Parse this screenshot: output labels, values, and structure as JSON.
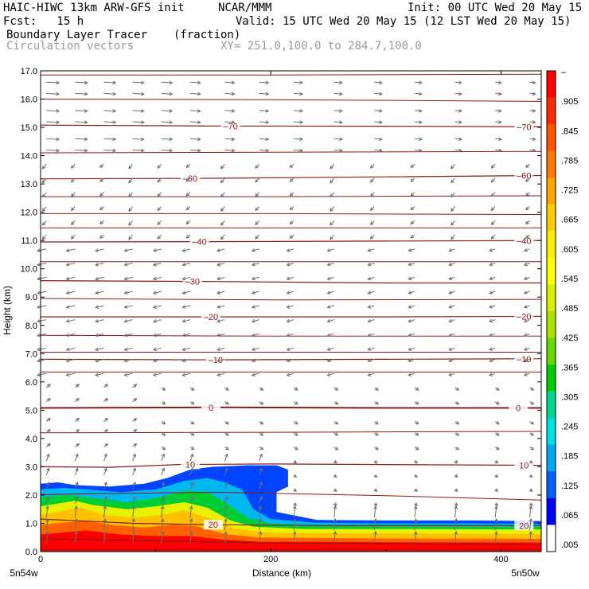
{
  "header": {
    "title": "HAIC-HIWC 13km ARW-GFS init",
    "org": "NCAR/MMM",
    "init": "Init: 00 UTC Wed 20 May 15",
    "fcst": "Fcst:   15 h",
    "valid": "Valid: 15 UTC Wed 20 May 15 (12 LST Wed 20 May 15)",
    "field": "Boundary Layer Tracer",
    "units": "(fraction)",
    "overlay": "Circulation vectors",
    "xy": "XY= 251.0,100.0 to 284.7,100.0"
  },
  "chart_data": {
    "type": "heatmap",
    "title": "Boundary Layer Tracer",
    "ylabel": "Height (km)",
    "xlabel": "Distance (km)",
    "xlim": [
      0,
      435
    ],
    "ylim": [
      0,
      17
    ],
    "y_ticks": [
      "0.0",
      "1.0",
      "2.0",
      "3.0",
      "4.0",
      "5.0",
      "6.0",
      "7.0",
      "8.0",
      "9.0",
      "10.0",
      "11.0",
      "12.0",
      "13.0",
      "14.0",
      "15.0",
      "16.0",
      "17.0"
    ],
    "x_ticks": [
      0,
      200,
      400
    ],
    "x_tick_labels": [
      "0",
      "200",
      "400"
    ],
    "x_end_labels": [
      "5n54w",
      "5n50w"
    ],
    "colorbar": {
      "labels": [
        "–",
        ".905",
        ".845",
        ".785",
        ".725",
        ".665",
        ".605",
        ".545",
        ".485",
        ".425",
        ".365",
        ".305",
        ".245",
        ".185",
        ".125",
        ".065",
        ".005"
      ],
      "colors": [
        "#ff0000",
        "#ff2a00",
        "#ff5500",
        "#ff7a00",
        "#ffa500",
        "#ffcc00",
        "#ffee00",
        "#ffff00",
        "#d8f000",
        "#a8e400",
        "#66d800",
        "#00cc00",
        "#00d890",
        "#00e0e0",
        "#00a8f0",
        "#0060ff",
        "#0000ff",
        "#ffffff"
      ]
    },
    "tracer_bands": [
      {
        "value": 0.035,
        "color": "#0044ff",
        "top": [
          [
            0,
            2.4
          ],
          [
            15,
            2.45
          ],
          [
            30,
            2.35
          ],
          [
            60,
            2.3
          ],
          [
            90,
            2.4
          ],
          [
            110,
            2.6
          ],
          [
            130,
            2.9
          ],
          [
            150,
            3.0
          ],
          [
            180,
            3.05
          ],
          [
            205,
            3.05
          ],
          [
            215,
            2.9
          ],
          [
            215,
            2.3
          ],
          [
            205,
            2.1
          ],
          [
            205,
            1.4
          ],
          [
            240,
            1.12
          ],
          [
            300,
            1.1
          ],
          [
            370,
            1.1
          ],
          [
            435,
            1.08
          ]
        ]
      },
      {
        "value": 0.095,
        "color": "#00b8f0",
        "top": [
          [
            0,
            2.2
          ],
          [
            20,
            2.25
          ],
          [
            40,
            2.2
          ],
          [
            70,
            2.1
          ],
          [
            100,
            2.2
          ],
          [
            125,
            2.5
          ],
          [
            145,
            2.6
          ],
          [
            160,
            2.45
          ],
          [
            175,
            2.2
          ],
          [
            185,
            1.5
          ],
          [
            200,
            1.15
          ],
          [
            240,
            1.02
          ],
          [
            300,
            1.0
          ],
          [
            370,
            1.0
          ],
          [
            435,
            0.98
          ]
        ]
      },
      {
        "value": 0.275,
        "color": "#00cc33",
        "top": [
          [
            0,
            1.95
          ],
          [
            25,
            2.0
          ],
          [
            45,
            1.9
          ],
          [
            75,
            1.75
          ],
          [
            100,
            1.9
          ],
          [
            125,
            2.15
          ],
          [
            145,
            2.1
          ],
          [
            160,
            1.75
          ],
          [
            180,
            1.2
          ],
          [
            200,
            0.98
          ],
          [
            250,
            0.92
          ],
          [
            330,
            0.9
          ],
          [
            435,
            0.88
          ]
        ]
      },
      {
        "value": 0.455,
        "color": "#e8f000",
        "top": [
          [
            0,
            1.6
          ],
          [
            30,
            1.8
          ],
          [
            45,
            1.65
          ],
          [
            75,
            1.5
          ],
          [
            100,
            1.6
          ],
          [
            125,
            1.75
          ],
          [
            145,
            1.55
          ],
          [
            165,
            1.1
          ],
          [
            185,
            0.88
          ],
          [
            230,
            0.8
          ],
          [
            330,
            0.8
          ],
          [
            435,
            0.78
          ]
        ]
      },
      {
        "value": 0.635,
        "color": "#ffc000",
        "top": [
          [
            0,
            1.3
          ],
          [
            35,
            1.55
          ],
          [
            55,
            1.3
          ],
          [
            80,
            1.2
          ],
          [
            105,
            1.3
          ],
          [
            125,
            1.45
          ],
          [
            145,
            1.2
          ],
          [
            170,
            0.8
          ],
          [
            200,
            0.66
          ],
          [
            300,
            0.64
          ],
          [
            435,
            0.62
          ]
        ]
      },
      {
        "value": 0.815,
        "color": "#ff6000",
        "top": [
          [
            0,
            0.95
          ],
          [
            40,
            1.1
          ],
          [
            60,
            0.95
          ],
          [
            90,
            0.85
          ],
          [
            115,
            0.95
          ],
          [
            135,
            0.9
          ],
          [
            160,
            0.62
          ],
          [
            190,
            0.5
          ],
          [
            300,
            0.46
          ],
          [
            435,
            0.45
          ]
        ]
      },
      {
        "value": 0.935,
        "color": "#ff0000",
        "top": [
          [
            0,
            0.6
          ],
          [
            40,
            0.75
          ],
          [
            70,
            0.6
          ],
          [
            100,
            0.55
          ],
          [
            130,
            0.55
          ],
          [
            160,
            0.42
          ],
          [
            190,
            0.35
          ],
          [
            300,
            0.33
          ],
          [
            435,
            0.32
          ]
        ]
      }
    ],
    "contours": [
      {
        "label": "–70",
        "level": -70,
        "pts": [
          [
            0,
            15.08
          ],
          [
            150,
            15.05
          ],
          [
            300,
            15.04
          ],
          [
            435,
            15.02
          ]
        ],
        "label_x": [
          165,
          420
        ]
      },
      {
        "label": "–60",
        "level": -60,
        "pts": [
          [
            0,
            13.18
          ],
          [
            150,
            13.2
          ],
          [
            300,
            13.25
          ],
          [
            435,
            13.3
          ]
        ],
        "label_x": [
          130,
          420
        ]
      },
      {
        "label": "–40",
        "level": -40,
        "pts": [
          [
            0,
            10.95
          ],
          [
            150,
            10.96
          ],
          [
            300,
            10.98
          ],
          [
            435,
            11.0
          ]
        ],
        "label_x": [
          138,
          420
        ]
      },
      {
        "label": "–30",
        "level": -30,
        "pts": [
          [
            0,
            9.58
          ],
          [
            150,
            9.55
          ],
          [
            300,
            9.5
          ],
          [
            435,
            9.5
          ]
        ],
        "label_x": [
          132,
          null
        ]
      },
      {
        "label": "–20",
        "level": -20,
        "pts": [
          [
            0,
            8.3
          ],
          [
            150,
            8.3
          ],
          [
            300,
            8.3
          ],
          [
            435,
            8.32
          ]
        ],
        "label_x": [
          148,
          420
        ]
      },
      {
        "label": "–10",
        "level": -10,
        "pts": [
          [
            0,
            6.8
          ],
          [
            150,
            6.78
          ],
          [
            300,
            6.8
          ],
          [
            435,
            6.82
          ]
        ],
        "label_x": [
          152,
          420
        ]
      },
      {
        "label": "0",
        "level": 0,
        "pts": [
          [
            0,
            5.08
          ],
          [
            150,
            5.1
          ],
          [
            300,
            5.08
          ],
          [
            435,
            5.08
          ]
        ],
        "label_x": [
          148,
          415
        ]
      },
      {
        "label": "10",
        "level": 10,
        "pts": [
          [
            0,
            3.0
          ],
          [
            60,
            2.98
          ],
          [
            120,
            3.08
          ],
          [
            200,
            3.1
          ],
          [
            300,
            3.08
          ],
          [
            435,
            3.05
          ]
        ],
        "label_x": [
          130,
          420
        ]
      },
      {
        "label": "20",
        "level": 20,
        "pts": [
          [
            0,
            1.15
          ],
          [
            80,
            1.0
          ],
          [
            150,
            0.95
          ],
          [
            250,
            0.92
          ],
          [
            435,
            0.92
          ]
        ],
        "label_x": [
          150,
          420
        ]
      },
      {
        "label": "",
        "level": 25,
        "pts": [
          [
            0,
            0.45
          ],
          [
            100,
            0.38
          ],
          [
            200,
            0.3
          ],
          [
            435,
            0.25
          ]
        ],
        "label_x": [
          null,
          null
        ]
      }
    ],
    "thin_contours": [
      [
        [
          0,
          16.85
        ],
        [
          200,
          16.85
        ],
        [
          435,
          16.88
        ]
      ],
      [
        [
          0,
          16.0
        ],
        [
          200,
          15.98
        ],
        [
          435,
          15.92
        ]
      ],
      [
        [
          0,
          14.1
        ],
        [
          200,
          14.12
        ],
        [
          435,
          14.15
        ]
      ],
      [
        [
          0,
          12.55
        ],
        [
          200,
          12.55
        ],
        [
          435,
          12.58
        ]
      ],
      [
        [
          0,
          11.95
        ],
        [
          200,
          11.95
        ],
        [
          435,
          11.92
        ]
      ],
      [
        [
          0,
          11.45
        ],
        [
          200,
          11.45
        ],
        [
          435,
          11.45
        ]
      ],
      [
        [
          0,
          10.25
        ],
        [
          200,
          10.25
        ],
        [
          435,
          10.25
        ]
      ],
      [
        [
          0,
          8.95
        ],
        [
          200,
          8.9
        ],
        [
          435,
          8.92
        ]
      ],
      [
        [
          0,
          7.65
        ],
        [
          200,
          7.62
        ],
        [
          435,
          7.62
        ]
      ],
      [
        [
          0,
          7.05
        ],
        [
          200,
          7.05
        ],
        [
          435,
          7.05
        ]
      ],
      [
        [
          0,
          6.35
        ],
        [
          200,
          6.35
        ],
        [
          435,
          6.35
        ]
      ],
      [
        [
          0,
          4.2
        ],
        [
          200,
          4.22
        ],
        [
          435,
          4.25
        ]
      ],
      [
        [
          0,
          2.02
        ],
        [
          150,
          2.1
        ],
        [
          300,
          1.98
        ],
        [
          435,
          1.82
        ]
      ],
      [
        [
          0,
          0.08
        ],
        [
          200,
          0.08
        ],
        [
          435,
          0.08
        ]
      ]
    ],
    "vectors": {
      "x_positions": [
        5,
        30,
        55,
        80,
        105,
        130,
        160,
        190,
        220,
        255,
        290,
        325,
        360,
        395,
        425
      ],
      "levels": [
        0.3,
        0.75,
        1.2,
        1.7,
        2.2,
        2.7,
        3.2,
        3.7,
        4.2,
        4.6,
        5.3,
        5.8,
        6.3,
        6.8,
        7.2,
        7.7,
        8.2,
        8.7,
        9.2,
        9.7,
        10.2,
        10.7,
        11.2,
        11.7,
        12.2,
        12.7,
        13.2,
        13.7,
        14.2,
        14.6,
        15.2,
        15.6,
        16.2,
        16.6
      ]
    }
  }
}
